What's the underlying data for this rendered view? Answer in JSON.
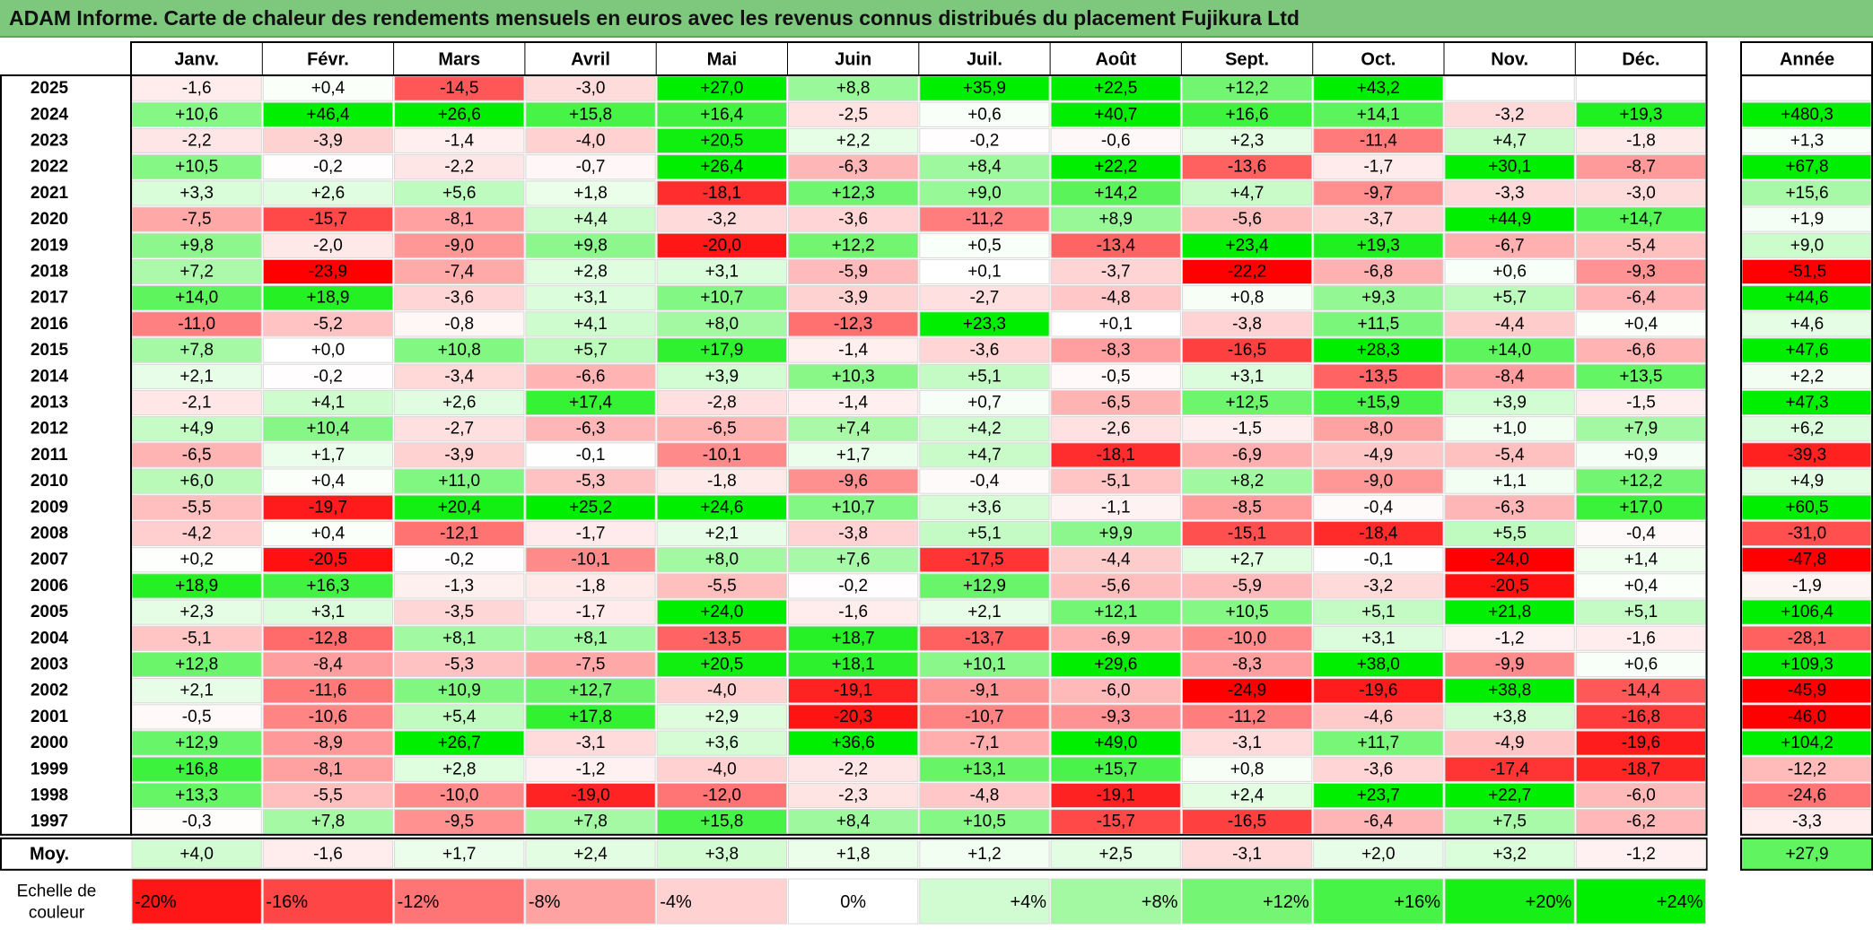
{
  "title": "ADAM Informe. Carte de chaleur des rendements mensuels en euros avec les revenus connus distribués du placement Fujikura Ltd",
  "chart_data": {
    "type": "heatmap",
    "months": [
      "Janv.",
      "Févr.",
      "Mars",
      "Avril",
      "Mai",
      "Juin",
      "Juil.",
      "Août",
      "Sept.",
      "Oct.",
      "Nov.",
      "Déc."
    ],
    "annual_header": "Année",
    "years": [
      "2025",
      "2024",
      "2023",
      "2022",
      "2021",
      "2020",
      "2019",
      "2018",
      "2017",
      "2016",
      "2015",
      "2014",
      "2013",
      "2012",
      "2011",
      "2010",
      "2009",
      "2008",
      "2007",
      "2006",
      "2005",
      "2004",
      "2003",
      "2002",
      "2001",
      "2000",
      "1999",
      "1998",
      "1997"
    ],
    "values": [
      [
        "-1,6",
        "+0,4",
        "-14,5",
        "-3,0",
        "+27,0",
        "+8,8",
        "+35,9",
        "+22,5",
        "+12,2",
        "+43,2",
        "",
        ""
      ],
      [
        "+10,6",
        "+46,4",
        "+26,6",
        "+15,8",
        "+16,4",
        "-2,5",
        "+0,6",
        "+40,7",
        "+16,6",
        "+14,1",
        "-3,2",
        "+19,3"
      ],
      [
        "-2,2",
        "-3,9",
        "-1,4",
        "-4,0",
        "+20,5",
        "+2,2",
        "-0,2",
        "-0,6",
        "+2,3",
        "-11,4",
        "+4,7",
        "-1,8"
      ],
      [
        "+10,5",
        "-0,2",
        "-2,2",
        "-0,7",
        "+26,4",
        "-6,3",
        "+8,4",
        "+22,2",
        "-13,6",
        "-1,7",
        "+30,1",
        "-8,7"
      ],
      [
        "+3,3",
        "+2,6",
        "+5,6",
        "+1,8",
        "-18,1",
        "+12,3",
        "+9,0",
        "+14,2",
        "+4,7",
        "-9,7",
        "-3,3",
        "-3,0"
      ],
      [
        "-7,5",
        "-15,7",
        "-8,1",
        "+4,4",
        "-3,2",
        "-3,6",
        "-11,2",
        "+8,9",
        "-5,6",
        "-3,7",
        "+44,9",
        "+14,7"
      ],
      [
        "+9,8",
        "-2,0",
        "-9,0",
        "+9,8",
        "-20,0",
        "+12,2",
        "+0,5",
        "-13,4",
        "+23,4",
        "+19,3",
        "-6,7",
        "-5,4"
      ],
      [
        "+7,2",
        "-23,9",
        "-7,4",
        "+2,8",
        "+3,1",
        "-5,9",
        "+0,1",
        "-3,7",
        "-22,2",
        "-6,8",
        "+0,6",
        "-9,3"
      ],
      [
        "+14,0",
        "+18,9",
        "-3,6",
        "+3,1",
        "+10,7",
        "-3,9",
        "-2,7",
        "-4,8",
        "+0,8",
        "+9,3",
        "+5,7",
        "-6,4"
      ],
      [
        "-11,0",
        "-5,2",
        "-0,8",
        "+4,1",
        "+8,0",
        "-12,3",
        "+23,3",
        "+0,1",
        "-3,8",
        "+11,5",
        "-4,4",
        "+0,4"
      ],
      [
        "+7,8",
        "+0,0",
        "+10,8",
        "+5,7",
        "+17,9",
        "-1,4",
        "-3,6",
        "-8,3",
        "-16,5",
        "+28,3",
        "+14,0",
        "-6,6"
      ],
      [
        "+2,1",
        "-0,2",
        "-3,4",
        "-6,6",
        "+3,9",
        "+10,3",
        "+5,1",
        "-0,5",
        "+3,1",
        "-13,5",
        "-8,4",
        "+13,5"
      ],
      [
        "-2,1",
        "+4,1",
        "+2,6",
        "+17,4",
        "-2,8",
        "-1,4",
        "+0,7",
        "-6,5",
        "+12,5",
        "+15,9",
        "+3,9",
        "-1,5"
      ],
      [
        "+4,9",
        "+10,4",
        "-2,7",
        "-6,3",
        "-6,5",
        "+7,4",
        "+4,2",
        "-2,6",
        "-1,5",
        "-8,0",
        "+1,0",
        "+7,9"
      ],
      [
        "-6,5",
        "+1,7",
        "-3,9",
        "-0,1",
        "-10,1",
        "+1,7",
        "+4,7",
        "-18,1",
        "-6,9",
        "-4,9",
        "-5,4",
        "+0,9"
      ],
      [
        "+6,0",
        "+0,4",
        "+11,0",
        "-5,3",
        "-1,8",
        "-9,6",
        "-0,4",
        "-5,1",
        "+8,2",
        "-9,0",
        "+1,1",
        "+12,2"
      ],
      [
        "-5,5",
        "-19,7",
        "+20,4",
        "+25,2",
        "+24,6",
        "+10,7",
        "+3,6",
        "-1,1",
        "-8,5",
        "-0,4",
        "-6,3",
        "+17,0"
      ],
      [
        "-4,2",
        "+0,4",
        "-12,1",
        "-1,7",
        "+2,1",
        "-3,8",
        "+5,1",
        "+9,9",
        "-15,1",
        "-18,4",
        "+5,5",
        "-0,4"
      ],
      [
        "+0,2",
        "-20,5",
        "-0,2",
        "-10,1",
        "+8,0",
        "+7,6",
        "-17,5",
        "-4,4",
        "+2,7",
        "-0,1",
        "-24,0",
        "+1,4"
      ],
      [
        "+18,9",
        "+16,3",
        "-1,3",
        "-1,8",
        "-5,5",
        "-0,2",
        "+12,9",
        "-5,6",
        "-5,9",
        "-3,2",
        "-20,5",
        "+0,4"
      ],
      [
        "+2,3",
        "+3,1",
        "-3,5",
        "-1,7",
        "+24,0",
        "-1,6",
        "+2,1",
        "+12,1",
        "+10,5",
        "+5,1",
        "+21,8",
        "+5,1"
      ],
      [
        "-5,1",
        "-12,8",
        "+8,1",
        "+8,1",
        "-13,5",
        "+18,7",
        "-13,7",
        "-6,9",
        "-10,0",
        "+3,1",
        "-1,2",
        "-1,6"
      ],
      [
        "+12,8",
        "-8,4",
        "-5,3",
        "-7,5",
        "+20,5",
        "+18,1",
        "+10,1",
        "+29,6",
        "-8,3",
        "+38,0",
        "-9,9",
        "+0,6"
      ],
      [
        "+2,1",
        "-11,6",
        "+10,9",
        "+12,7",
        "-4,0",
        "-19,1",
        "-9,1",
        "-6,0",
        "-24,9",
        "-19,6",
        "+38,8",
        "-14,4"
      ],
      [
        "-0,5",
        "-10,6",
        "+5,4",
        "+17,8",
        "+2,9",
        "-20,3",
        "-10,7",
        "-9,3",
        "-11,2",
        "-4,6",
        "+3,8",
        "-16,8"
      ],
      [
        "+12,9",
        "-8,9",
        "+26,7",
        "-3,1",
        "+3,6",
        "+36,6",
        "-7,1",
        "+49,0",
        "-3,1",
        "+11,7",
        "-4,9",
        "-19,6"
      ],
      [
        "+16,8",
        "-8,1",
        "+2,8",
        "-1,2",
        "-4,0",
        "-2,2",
        "+13,1",
        "+15,7",
        "+0,8",
        "-3,6",
        "-17,4",
        "-18,7"
      ],
      [
        "+13,3",
        "-5,5",
        "-10,0",
        "-19,0",
        "-12,0",
        "-2,3",
        "-4,8",
        "-19,1",
        "+2,4",
        "+23,7",
        "+22,7",
        "-6,0"
      ],
      [
        "-0,3",
        "+7,8",
        "-9,5",
        "+7,8",
        "+15,8",
        "+8,4",
        "+10,5",
        "-15,7",
        "-16,5",
        "-6,4",
        "+7,5",
        "-6,2"
      ]
    ],
    "annual": [
      "",
      "+480,3",
      "+1,3",
      "+67,8",
      "+15,6",
      "+1,9",
      "+9,0",
      "-51,5",
      "+44,6",
      "+4,6",
      "+47,6",
      "+2,2",
      "+47,3",
      "+6,2",
      "-39,3",
      "+4,9",
      "+60,5",
      "-31,0",
      "-47,8",
      "-1,9",
      "+106,4",
      "-28,1",
      "+109,3",
      "-45,9",
      "-46,0",
      "+104,2",
      "-12,2",
      "-24,6",
      "-3,3"
    ],
    "average_label": "Moy.",
    "averages": [
      "+4,0",
      "-1,6",
      "+1,7",
      "+2,4",
      "+3,8",
      "+1,8",
      "+1,2",
      "+2,5",
      "-3,1",
      "+2,0",
      "+3,2",
      "-1,2"
    ],
    "average_annual": "+27,9",
    "scale_label": [
      "Echelle de",
      "couleur"
    ],
    "scale": [
      "-20%",
      "-16%",
      "-12%",
      "-8%",
      "-4%",
      "0%",
      "+4%",
      "+8%",
      "+12%",
      "+16%",
      "+20%",
      "+24%"
    ],
    "colors": {
      "negative": "#ff0000",
      "neutral": "#ffffff",
      "positive": "#00ee00",
      "title_bg": "#7dc87d"
    }
  }
}
